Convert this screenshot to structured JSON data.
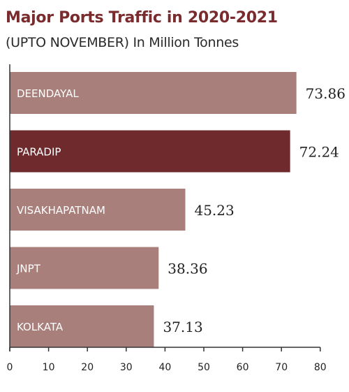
{
  "chart_data": {
    "type": "bar",
    "orientation": "horizontal",
    "title": "Major Ports Traffic in 2020-2021",
    "subtitle": "(UPTO NOVEMBER) In Million Tonnes",
    "categories": [
      "DEENDAYAL",
      "PARADIP",
      "VISAKHAPATNAM",
      "JNPT",
      "KOLKATA"
    ],
    "values": [
      73.86,
      72.24,
      45.23,
      38.36,
      37.13
    ],
    "value_labels": [
      "73.86",
      "72.24",
      "45.23",
      "38.36",
      "37.13"
    ],
    "xlim": [
      0,
      80
    ],
    "xticks": [
      0,
      10,
      20,
      30,
      40,
      50,
      60,
      70,
      80
    ],
    "highlight_index": 1,
    "grid": false,
    "colors": {
      "bar": "#a87f7a",
      "bar_highlight": "#6e2a2c",
      "title": "#7a2b2e",
      "label_inside": "#ffffff",
      "text": "#222222",
      "axis": "#333333"
    }
  }
}
